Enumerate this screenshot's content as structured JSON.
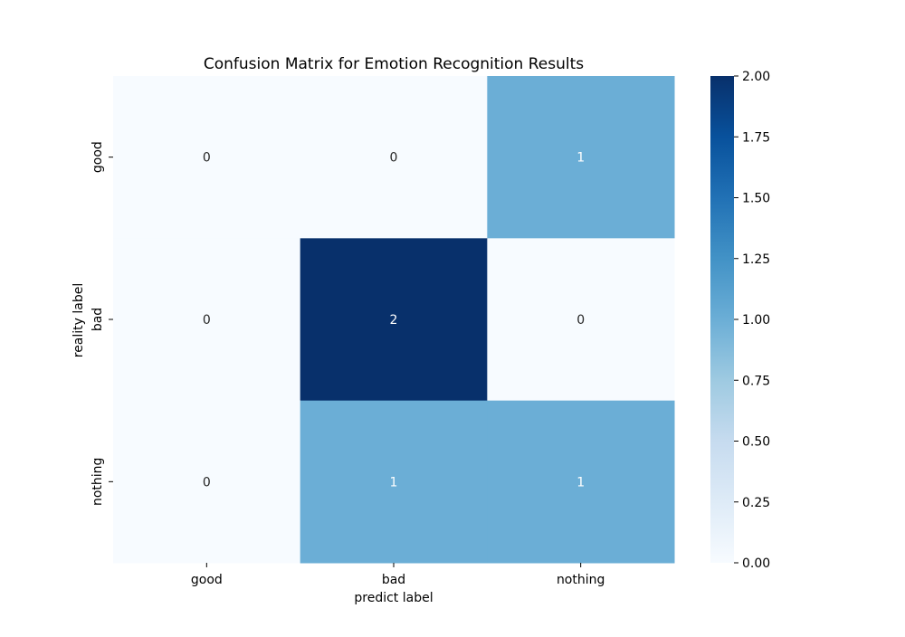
{
  "chart_data": {
    "type": "heatmap",
    "title": "Confusion Matrix for Emotion Recognition Results",
    "xlabel": "predict label",
    "ylabel": "reality label",
    "x_categories": [
      "good",
      "bad",
      "nothing"
    ],
    "y_categories": [
      "good",
      "bad",
      "nothing"
    ],
    "values": [
      [
        0,
        0,
        1
      ],
      [
        0,
        2,
        0
      ],
      [
        0,
        1,
        1
      ]
    ],
    "annotations": [
      [
        "0",
        "0",
        "1"
      ],
      [
        "0",
        "2",
        "0"
      ],
      [
        "0",
        "1",
        "1"
      ]
    ],
    "colormap": "Blues",
    "colorbar": {
      "min": 0,
      "max": 2,
      "ticks": [
        "0.00",
        "0.25",
        "0.50",
        "0.75",
        "1.00",
        "1.25",
        "1.50",
        "1.75",
        "2.00"
      ]
    },
    "colors": {
      "low": "#f7fbff",
      "mid": "#6baed6",
      "high": "#08306b",
      "text_dark": "#262626",
      "text_light": "#ffffff"
    }
  }
}
